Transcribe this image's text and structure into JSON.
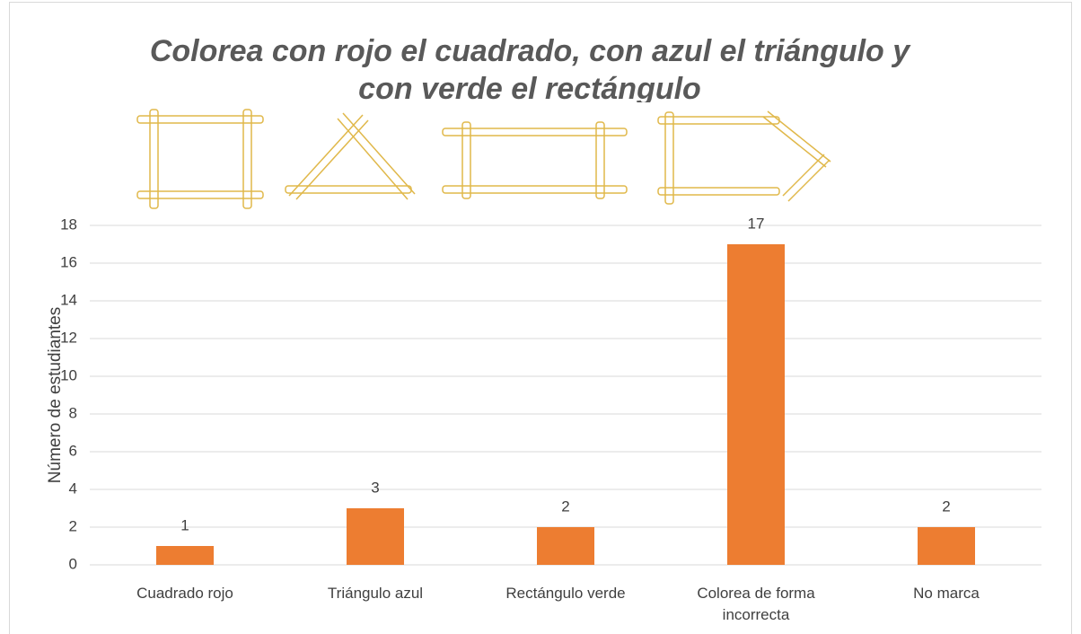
{
  "chart_data": {
    "type": "bar",
    "title": "Colorea con rojo el cuadrado, con azul el triángulo y con verde el rectángulo",
    "y_label": "Número de estudiantes",
    "categories": [
      "Cuadrado rojo",
      "Triángulo azul",
      "Rectángulo verde",
      "Colorea de forma incorrecta",
      "No marca"
    ],
    "values": [
      1,
      3,
      2,
      17,
      2
    ],
    "color": "#ed7d31",
    "ylim": [
      0,
      18
    ],
    "yticks": [
      0,
      2,
      4,
      6,
      8,
      10,
      12,
      14,
      16,
      18
    ],
    "grid": true
  }
}
